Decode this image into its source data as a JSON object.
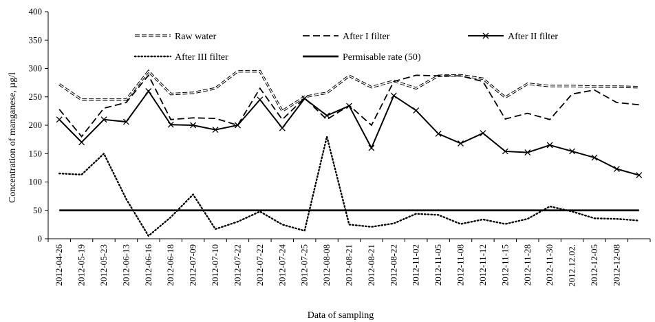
{
  "chart_data": {
    "type": "line",
    "title": "",
    "xlabel": "Data of sampling",
    "ylabel": "Concentration of manganese, µg/l",
    "ylim": [
      0,
      400
    ],
    "yticks": [
      0,
      50,
      100,
      150,
      200,
      250,
      300,
      350,
      400
    ],
    "grid": false,
    "legend_position": "top",
    "categories": [
      "2012-04-26",
      "2012-05-19",
      "2012-05-23",
      "2012-06-13",
      "2012-06-16",
      "2012-06-18",
      "2012-07-09",
      "2012-07-10",
      "2012-07-22",
      "2012-07-22",
      "2012-07-24",
      "2012-07-25",
      "2012-08-08",
      "2012-08-21",
      "2012-08-21",
      "2012-08-22",
      "2012-11-02",
      "2012-11-05",
      "2012-11-08",
      "2012-11-12",
      "2012-11-15",
      "2012-11-28",
      "2012-11-30",
      "2012.12.02.",
      "2012-12-05",
      "2012-12-08",
      ""
    ],
    "series": [
      {
        "name": "Raw water",
        "style": "thin-double-dash",
        "color": "#000000",
        "values": [
          272,
          245,
          245,
          245,
          295,
          255,
          257,
          265,
          295,
          295,
          225,
          250,
          257,
          287,
          267,
          278,
          265,
          287,
          288,
          282,
          249,
          273,
          269,
          269,
          268,
          268,
          267
        ]
      },
      {
        "name": "After I filter",
        "style": "dashed",
        "color": "#000000",
        "values": [
          228,
          180,
          230,
          240,
          288,
          210,
          213,
          212,
          200,
          265,
          210,
          248,
          210,
          235,
          200,
          277,
          288,
          287,
          287,
          277,
          211,
          221,
          210,
          255,
          262,
          240,
          236
        ]
      },
      {
        "name": "After II filter",
        "style": "solid-cross",
        "color": "#000000",
        "values": [
          210,
          170,
          210,
          206,
          260,
          201,
          200,
          192,
          200,
          245,
          195,
          247,
          217,
          234,
          160,
          252,
          226,
          185,
          168,
          186,
          154,
          152,
          165,
          154,
          143,
          123,
          112
        ]
      },
      {
        "name": "After III filter",
        "style": "dotted",
        "color": "#000000",
        "values": [
          115,
          113,
          150,
          70,
          5,
          38,
          78,
          17,
          30,
          48,
          25,
          14,
          180,
          25,
          21,
          27,
          44,
          42,
          26,
          34,
          26,
          35,
          57,
          48,
          36,
          35,
          32
        ]
      },
      {
        "name": "Permisable rate (50)",
        "style": "solid-thick",
        "color": "#000000",
        "values": [
          50,
          50,
          50,
          50,
          50,
          50,
          50,
          50,
          50,
          50,
          50,
          50,
          50,
          50,
          50,
          50,
          50,
          50,
          50,
          50,
          50,
          50,
          50,
          50,
          50,
          50,
          50
        ]
      }
    ]
  }
}
